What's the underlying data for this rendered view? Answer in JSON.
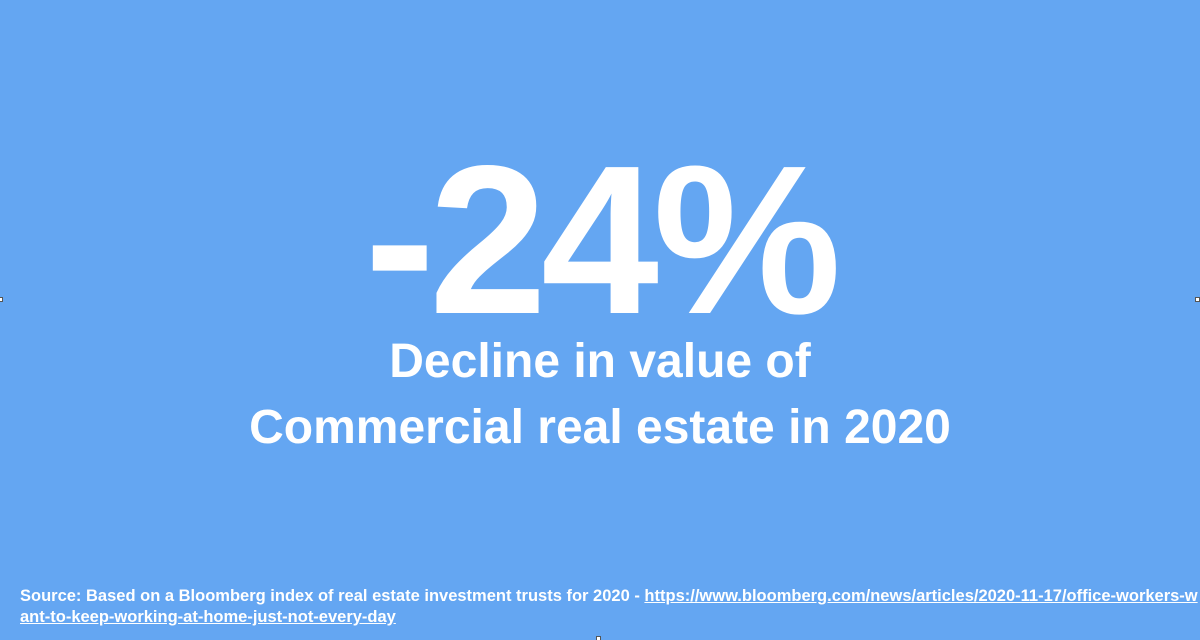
{
  "slide": {
    "stat": "-24%",
    "description": [
      "Decline in value of",
      "Commercial real estate in 2020"
    ],
    "source": {
      "text": "Source: Based on a Bloomberg index of real estate investment trusts for 2020 - ",
      "link": "https://www.bloomberg.com/news/articles/2020-11-17/office-workers-want-to-keep-working-at-home-just-not-every-day"
    }
  }
}
